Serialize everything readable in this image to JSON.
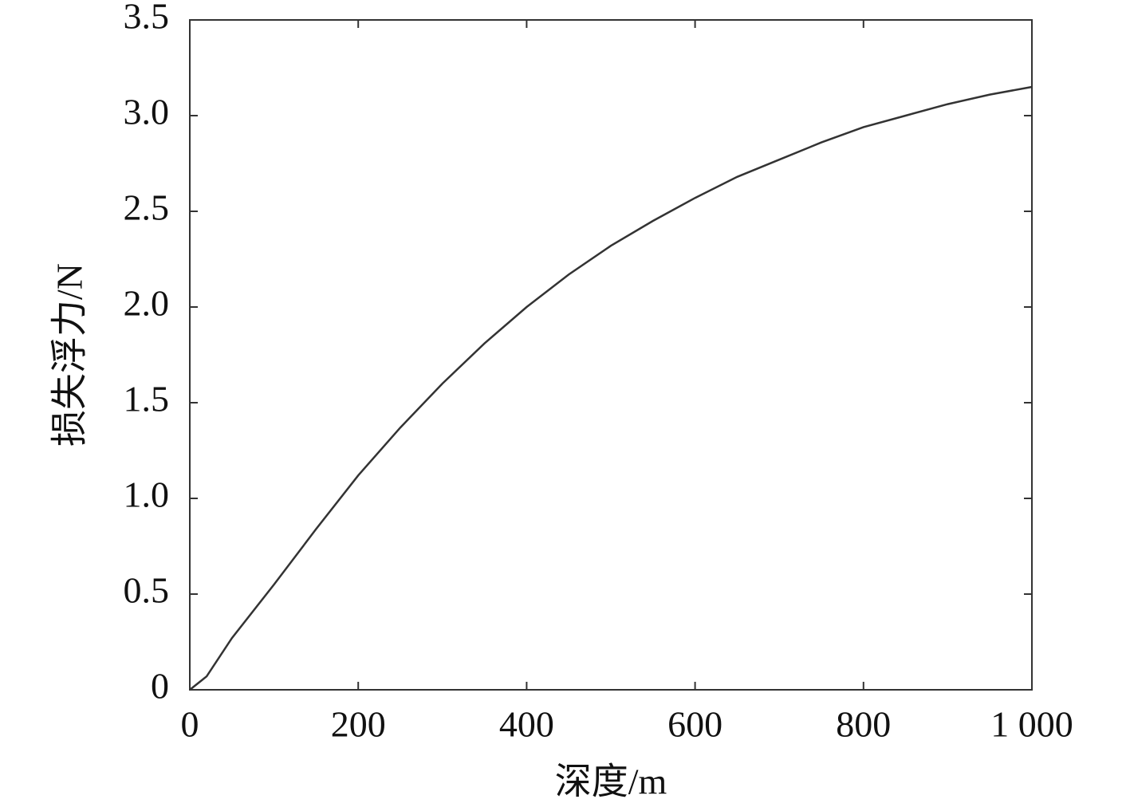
{
  "chart_data": {
    "type": "line",
    "xlabel": "深度/m",
    "ylabel": "损失浮力/N",
    "x": [
      0,
      20,
      50,
      100,
      150,
      200,
      250,
      300,
      350,
      400,
      450,
      500,
      550,
      600,
      650,
      700,
      750,
      800,
      850,
      900,
      950,
      1000
    ],
    "series": [
      {
        "color": "#333333",
        "values": [
          0,
          0.07,
          0.27,
          0.55,
          0.84,
          1.12,
          1.37,
          1.6,
          1.81,
          2.0,
          2.17,
          2.32,
          2.45,
          2.57,
          2.68,
          2.77,
          2.86,
          2.94,
          3.0,
          3.06,
          3.11,
          3.15
        ]
      }
    ],
    "xlim": [
      0,
      1000
    ],
    "ylim": [
      0,
      3.5
    ],
    "xticks": [
      0,
      200,
      400,
      600,
      800,
      {
        "value": 1000,
        "label": "1 000"
      }
    ],
    "yticks": [
      0,
      0.5,
      {
        "value": 1,
        "label": "1.0"
      },
      1.5,
      {
        "value": 2,
        "label": "2.0"
      },
      2.5,
      {
        "value": 3,
        "label": "3.0"
      },
      3.5
    ]
  }
}
